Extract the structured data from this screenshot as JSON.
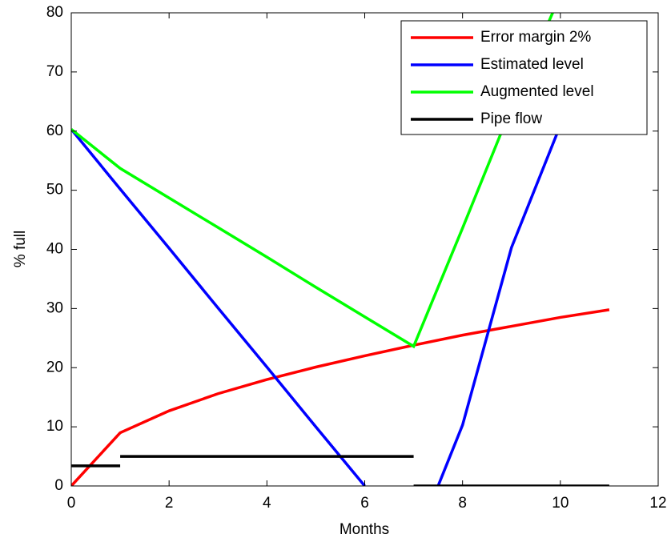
{
  "chart_data": {
    "type": "line",
    "xlabel": "Months",
    "ylabel": "% full",
    "xlim": [
      0,
      12
    ],
    "xticks": [
      0,
      2,
      4,
      6,
      8,
      10,
      12
    ],
    "ylim": [
      0,
      80
    ],
    "yticks": [
      0,
      10,
      20,
      30,
      40,
      50,
      60,
      70,
      80
    ],
    "legend": "upper right",
    "series": [
      {
        "name": "Error margin 2%",
        "color": "#ff0000",
        "x": [
          0,
          1,
          2,
          3,
          4,
          5,
          6,
          7,
          8,
          9,
          10,
          11
        ],
        "values": [
          0,
          9,
          12.7,
          15.6,
          18,
          20.1,
          22,
          23.8,
          25.5,
          27,
          28.5,
          29.8
        ]
      },
      {
        "name": "Estimated level",
        "color": "#0000ff",
        "x": [
          0,
          1,
          2,
          3,
          4,
          5,
          6,
          null,
          7.5,
          8,
          9,
          10
        ],
        "values": [
          60.3,
          50.2,
          40.2,
          30.1,
          20.1,
          10,
          0,
          null,
          0,
          10.3,
          40.3,
          61
        ]
      },
      {
        "name": "Augmented level",
        "color": "#00ff00",
        "x": [
          0,
          1,
          2,
          3,
          4,
          5,
          6,
          7,
          8,
          9,
          10
        ],
        "values": [
          60.3,
          53.7,
          48.7,
          43.7,
          38.7,
          33.6,
          28.6,
          23.6,
          43.6,
          64,
          83
        ]
      },
      {
        "name": "Pipe flow",
        "color": "#000000",
        "x": [
          0,
          1,
          null,
          1,
          7,
          null,
          7,
          11
        ],
        "values": [
          3.4,
          3.4,
          null,
          5,
          5,
          null,
          0,
          0
        ]
      }
    ]
  }
}
